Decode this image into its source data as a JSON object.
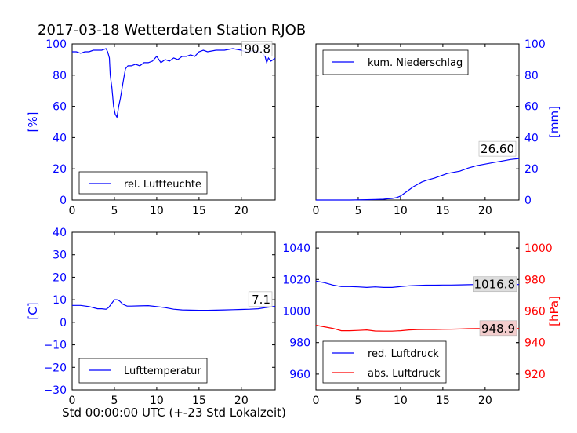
{
  "title": "2017-03-18 Wetterdaten Station RJOB",
  "xlabel": "Std 00:00:00 UTC (+-23 Std Lokalzeit)",
  "colors": {
    "blue": "#0000ff",
    "red": "#ff0000",
    "axis": "#000000"
  },
  "chart_data": [
    {
      "type": "line",
      "panel": "top-left",
      "legend_label": "rel. Luftfeuchte",
      "legend_placement": "lower-left",
      "ylabel": "[%]",
      "ylabel_side": "left",
      "xlim": [
        0,
        24
      ],
      "ylim": [
        0,
        100
      ],
      "xticks": [
        0,
        5,
        10,
        15,
        20
      ],
      "yticks": [
        0,
        20,
        40,
        60,
        80,
        100
      ],
      "ytick_color": "#0000ff",
      "annotation": "90.8",
      "series": [
        {
          "name": "rel. Luftfeuchte",
          "color": "#0000ff",
          "x": [
            0,
            0.5,
            1,
            1.5,
            2,
            2.5,
            3,
            3.5,
            4,
            4.2,
            4.4,
            4.5,
            4.7,
            4.9,
            5.1,
            5.3,
            5.5,
            5.7,
            6,
            6.3,
            6.6,
            7,
            7.5,
            8,
            8.5,
            9,
            9.5,
            10,
            10.5,
            11,
            11.5,
            12,
            12.5,
            13,
            13.5,
            14,
            14.5,
            15,
            15.5,
            16,
            17,
            18,
            19,
            20,
            20.5,
            21,
            21.5,
            22,
            22.5,
            22.8,
            23,
            23.2,
            23.5,
            24
          ],
          "y": [
            95,
            95,
            94,
            95,
            95,
            96,
            96,
            96,
            97,
            95,
            91,
            80,
            72,
            60,
            55,
            53,
            60,
            65,
            75,
            84,
            86,
            86,
            87,
            86,
            88,
            88,
            89,
            92,
            88,
            90,
            89,
            91,
            90,
            92,
            92,
            93,
            92,
            95,
            96,
            95,
            96,
            96,
            97,
            96,
            95,
            95,
            96,
            95,
            94,
            92,
            88,
            91,
            89,
            90.8
          ]
        }
      ]
    },
    {
      "type": "line",
      "panel": "top-right",
      "legend_label": "kum. Niederschlag",
      "legend_placement": "upper-left",
      "ylabel": "[mm]",
      "ylabel_side": "right",
      "xlim": [
        0,
        24
      ],
      "ylim": [
        0,
        100
      ],
      "xticks": [
        0,
        5,
        10,
        15,
        20
      ],
      "yticks": [
        0,
        20,
        40,
        60,
        80,
        100
      ],
      "ytick_color": "#0000ff",
      "annotation": "26.60",
      "series": [
        {
          "name": "kum. Niederschlag",
          "color": "#0000ff",
          "x": [
            0,
            2,
            4,
            6,
            7,
            8,
            8.5,
            9,
            9.5,
            10,
            10.5,
            11,
            11.5,
            12,
            12.5,
            13,
            14,
            15,
            15.5,
            16,
            17,
            18,
            19,
            20,
            21,
            22,
            23,
            24
          ],
          "y": [
            0,
            0,
            0,
            0.2,
            0.3,
            0.5,
            0.8,
            1,
            1.5,
            2.5,
            4.5,
            6.5,
            8.5,
            10,
            11.5,
            12.5,
            14,
            16,
            17,
            17.5,
            18.5,
            20.5,
            22,
            23,
            24,
            25,
            26,
            26.6
          ]
        }
      ]
    },
    {
      "type": "line",
      "panel": "bottom-left",
      "legend_label": "Lufttemperatur",
      "legend_placement": "lower-left",
      "ylabel": "[C]",
      "ylabel_side": "left",
      "xlim": [
        0,
        24
      ],
      "ylim": [
        -30,
        40
      ],
      "xticks": [
        0,
        5,
        10,
        15,
        20
      ],
      "yticks": [
        -30,
        -20,
        -10,
        0,
        10,
        20,
        30,
        40
      ],
      "ytick_color": "#0000ff",
      "annotation": "7.1",
      "series": [
        {
          "name": "Lufttemperatur",
          "color": "#0000ff",
          "x": [
            0,
            1,
            2,
            3,
            3.5,
            4,
            4.3,
            4.6,
            5,
            5.3,
            5.6,
            6,
            6.5,
            7,
            8,
            9,
            10,
            11,
            12,
            13,
            14,
            15,
            16,
            17,
            18,
            19,
            20,
            21,
            22,
            23,
            24
          ],
          "y": [
            7.5,
            7.5,
            7,
            6,
            6,
            5.8,
            6.5,
            8,
            10,
            10,
            9.5,
            8,
            7.2,
            7.2,
            7.3,
            7.4,
            7,
            6.5,
            5.8,
            5.5,
            5.4,
            5.3,
            5.3,
            5.4,
            5.5,
            5.6,
            5.7,
            5.8,
            6,
            6.6,
            7.1
          ]
        }
      ]
    },
    {
      "type": "line",
      "panel": "bottom-right",
      "legend_placement": "lower-left",
      "ylabel": "[hPa]",
      "ylabel_side": "right",
      "ylabel_color": "#ff0000",
      "xlim": [
        0,
        24
      ],
      "ylim": [
        950,
        1050
      ],
      "ylim_right": [
        910,
        1010
      ],
      "xticks": [
        0,
        5,
        10,
        15,
        20
      ],
      "yticks": [
        960,
        980,
        1000,
        1020,
        1040
      ],
      "yticks_right": [
        920,
        940,
        960,
        980,
        1000
      ],
      "ytick_color": "#0000ff",
      "ytick_color_right": "#ff0000",
      "annotation_left": "1016.8",
      "annotation_right": "948.9",
      "series": [
        {
          "name": "red. Luftdruck",
          "color": "#0000ff",
          "axis": "left",
          "x": [
            0,
            1,
            2,
            3,
            4,
            5,
            6,
            7,
            8,
            9,
            10,
            11,
            12,
            13,
            14,
            15,
            16,
            17,
            18,
            19,
            20,
            21,
            22,
            23,
            24
          ],
          "y": [
            1019,
            1018,
            1016.5,
            1015.5,
            1015.5,
            1015.3,
            1015,
            1015.3,
            1015,
            1015,
            1015.5,
            1016,
            1016.2,
            1016.4,
            1016.4,
            1016.5,
            1016.5,
            1016.6,
            1016.7,
            1016.8,
            1016.8,
            1016.7,
            1016.8,
            1016.9,
            1016.8
          ]
        },
        {
          "name": "abs. Luftdruck",
          "color": "#ff0000",
          "axis": "right",
          "x": [
            0,
            1,
            2,
            3,
            4,
            5,
            6,
            7,
            8,
            9,
            10,
            11,
            12,
            13,
            14,
            15,
            16,
            17,
            18,
            19,
            20,
            21,
            22,
            23,
            24
          ],
          "y": [
            951,
            950,
            949,
            947.5,
            947.5,
            947.7,
            948,
            947.3,
            947.2,
            947.2,
            947.5,
            948,
            948.2,
            948.3,
            948.3,
            948.4,
            948.5,
            948.6,
            948.8,
            948.9,
            948.9,
            948.8,
            948.9,
            949,
            948.9
          ]
        }
      ]
    }
  ]
}
